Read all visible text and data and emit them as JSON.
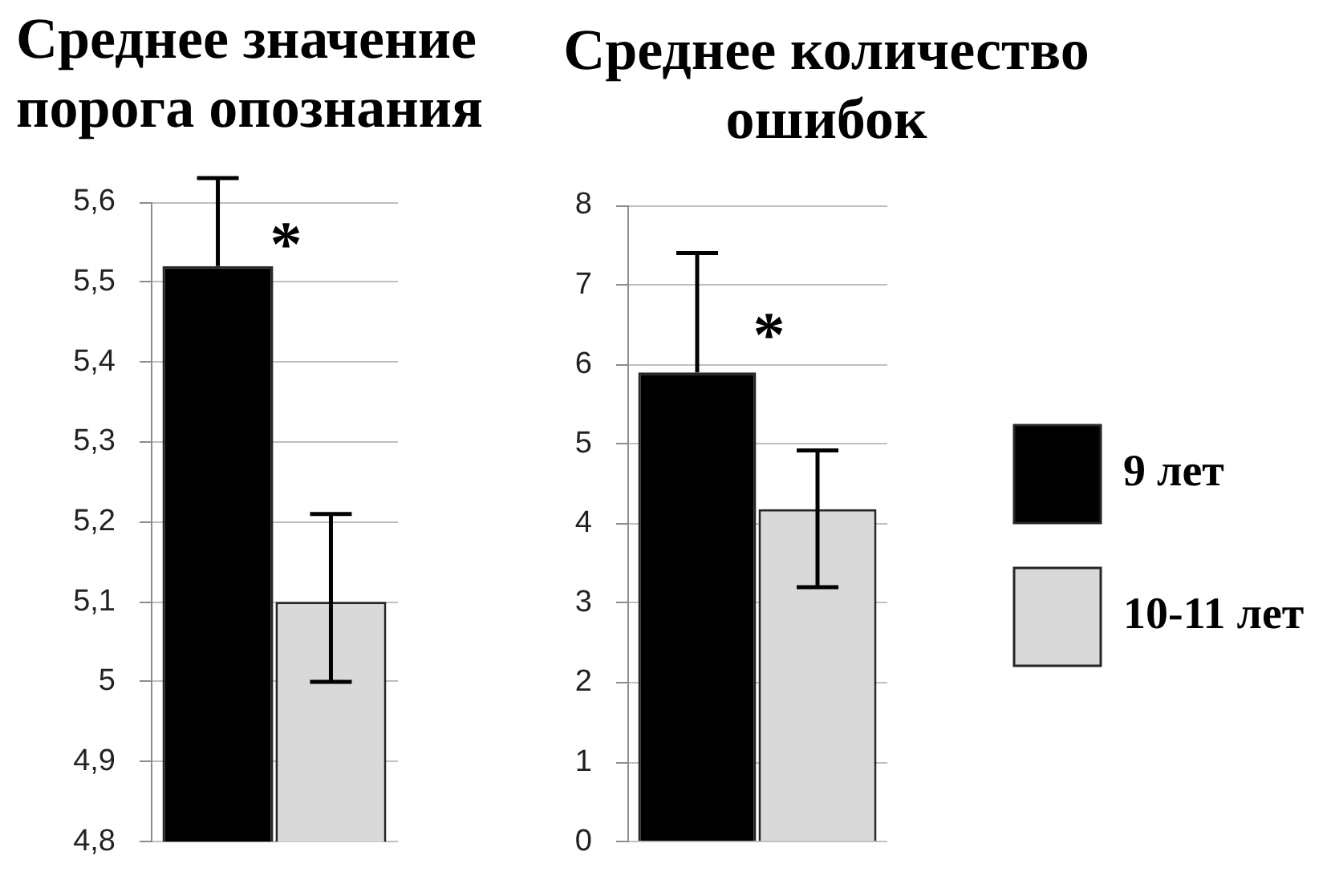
{
  "chart_data": [
    {
      "type": "bar",
      "title": "Среднее значение порога опознания",
      "categories": [
        null
      ],
      "series": [
        {
          "color": "#000000",
          "values": [
            5.52
          ],
          "errors": [
            [
              5.52,
              5.63
            ]
          ]
        },
        {
          "color": "#d9d9d9",
          "values": [
            5.1
          ],
          "errors": [
            [
              5.0,
              5.21
            ]
          ]
        }
      ],
      "ylim": [
        4.8,
        5.6
      ],
      "yticks": [
        {
          "value": 4.8,
          "label": "4,8"
        },
        {
          "value": 4.9,
          "label": "4,9"
        },
        5,
        {
          "value": 5.1,
          "label": "5,1"
        },
        {
          "value": 5.2,
          "label": "5,2"
        },
        {
          "value": 5.3,
          "label": "5,3"
        },
        {
          "value": 5.4,
          "label": "5,4"
        },
        {
          "value": 5.5,
          "label": "5,5"
        },
        {
          "value": 5.6,
          "label": "5,6"
        }
      ],
      "grid": "y",
      "annotations": [
        "*"
      ]
    },
    {
      "type": "bar",
      "title": "Среднее количество ошибок",
      "categories": [
        null
      ],
      "series": [
        {
          "name": "9 лет",
          "color": "#000000",
          "values": [
            5.9
          ],
          "errors": [
            [
              5.9,
              7.4
            ]
          ]
        },
        {
          "name": "10-11 лет",
          "color": "#d9d9d9",
          "values": [
            4.18
          ],
          "errors": [
            [
              3.2,
              4.92
            ]
          ]
        }
      ],
      "ylim": [
        0,
        8
      ],
      "yticks": [
        0,
        1,
        2,
        3,
        4,
        5,
        6,
        7,
        8
      ],
      "grid": "y",
      "legend": "right",
      "annotations": [
        "*"
      ]
    }
  ]
}
